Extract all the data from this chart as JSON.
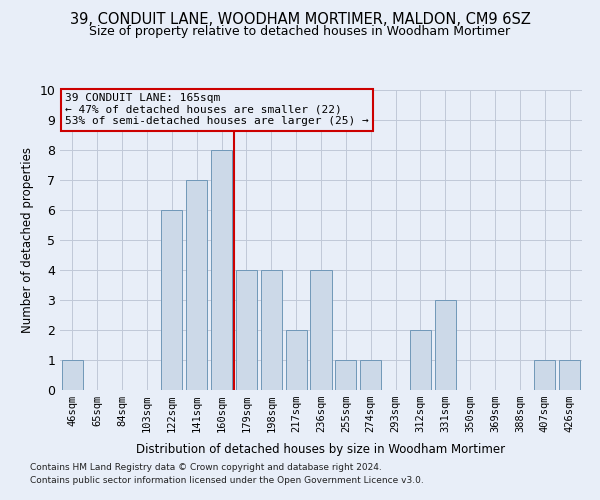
{
  "title": "39, CONDUIT LANE, WOODHAM MORTIMER, MALDON, CM9 6SZ",
  "subtitle": "Size of property relative to detached houses in Woodham Mortimer",
  "xlabel": "Distribution of detached houses by size in Woodham Mortimer",
  "ylabel": "Number of detached properties",
  "bar_labels": [
    "46sqm",
    "65sqm",
    "84sqm",
    "103sqm",
    "122sqm",
    "141sqm",
    "160sqm",
    "179sqm",
    "198sqm",
    "217sqm",
    "236sqm",
    "255sqm",
    "274sqm",
    "293sqm",
    "312sqm",
    "331sqm",
    "350sqm",
    "369sqm",
    "388sqm",
    "407sqm",
    "426sqm"
  ],
  "bar_values": [
    1,
    0,
    0,
    0,
    6,
    7,
    8,
    4,
    4,
    2,
    4,
    1,
    1,
    0,
    2,
    3,
    0,
    0,
    0,
    1,
    1
  ],
  "bar_color": "#ccd9e8",
  "bar_edge_color": "#7098b8",
  "ylim": [
    0,
    10
  ],
  "yticks": [
    0,
    1,
    2,
    3,
    4,
    5,
    6,
    7,
    8,
    9,
    10
  ],
  "vline_x_index": 6,
  "vline_color": "#cc0000",
  "annotation_title": "39 CONDUIT LANE: 165sqm",
  "annotation_line1": "← 47% of detached houses are smaller (22)",
  "annotation_line2": "53% of semi-detached houses are larger (25) →",
  "annotation_box_color": "#cc0000",
  "footnote1": "Contains HM Land Registry data © Crown copyright and database right 2024.",
  "footnote2": "Contains public sector information licensed under the Open Government Licence v3.0.",
  "background_color": "#e8eef8",
  "plot_bg_color": "#e8eef8",
  "grid_color": "#c0c8d8",
  "title_fontsize": 10.5,
  "subtitle_fontsize": 9
}
